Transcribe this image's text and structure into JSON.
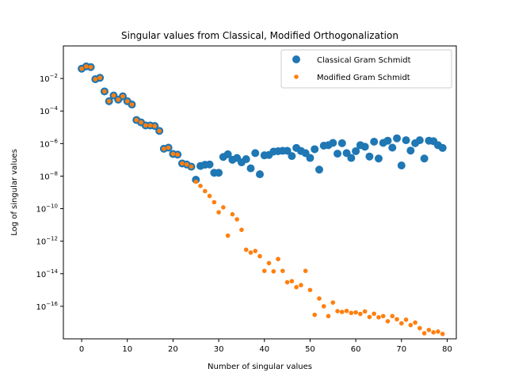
{
  "chart_data": {
    "type": "scatter",
    "title": "Singular values from Classical, Modified Orthogonalization",
    "xlabel": "Number of singular values",
    "ylabel": "Log of singular values",
    "xlim": [
      -4,
      82
    ],
    "ylim": [
      1e-18,
      1.0
    ],
    "y_scale": "log",
    "x_ticks": [
      0,
      10,
      20,
      30,
      40,
      50,
      60,
      70,
      80
    ],
    "y_ticks": [
      {
        "value": 1e-16,
        "base": "10",
        "exp": "−16"
      },
      {
        "value": 1e-14,
        "base": "10",
        "exp": "−14"
      },
      {
        "value": 1e-12,
        "base": "10",
        "exp": "−12"
      },
      {
        "value": 1e-10,
        "base": "10",
        "exp": "−10"
      },
      {
        "value": 1e-08,
        "base": "10",
        "exp": "−8"
      },
      {
        "value": 1e-06,
        "base": "10",
        "exp": "−6"
      },
      {
        "value": 0.0001,
        "base": "10",
        "exp": "−4"
      },
      {
        "value": 0.01,
        "base": "10",
        "exp": "−2"
      }
    ],
    "legend_position": "top-right",
    "series": [
      {
        "name": "Classical Gram Schmidt",
        "color": "#1f77b4",
        "marker": "large-circle",
        "x": [
          0,
          1,
          2,
          3,
          4,
          5,
          6,
          7,
          8,
          9,
          10,
          11,
          12,
          13,
          14,
          15,
          16,
          17,
          18,
          19,
          20,
          21,
          22,
          23,
          24,
          25,
          26,
          27,
          28,
          29,
          30,
          31,
          32,
          33,
          34,
          35,
          36,
          37,
          38,
          39,
          40,
          41,
          42,
          43,
          44,
          45,
          46,
          47,
          48,
          49,
          50,
          51,
          52,
          53,
          54,
          55,
          56,
          57,
          58,
          59,
          60,
          61,
          62,
          63,
          64,
          65,
          66,
          67,
          68,
          69,
          70,
          71,
          72,
          73,
          74,
          75,
          76,
          77,
          78,
          79
        ],
        "y": [
          0.04,
          0.055,
          0.05,
          0.009,
          0.011,
          0.0016,
          0.0004,
          0.0009,
          0.0005,
          0.0008,
          0.0004,
          0.00025,
          2.8e-05,
          2e-05,
          1.3e-05,
          1.3e-05,
          1.2e-05,
          6e-06,
          4.8e-07,
          5.6e-07,
          2.3e-07,
          2.1e-07,
          6e-08,
          5.2e-08,
          3.8e-08,
          6e-09,
          4.2e-08,
          5e-08,
          5.2e-08,
          1.6e-08,
          1.6e-08,
          1.5e-07,
          2.2e-07,
          1e-07,
          1.3e-07,
          7e-08,
          1.1e-07,
          3e-08,
          2.6e-07,
          1.3e-08,
          1.9e-07,
          2e-07,
          3.2e-07,
          3.4e-07,
          3.6e-07,
          3.6e-07,
          1.7e-07,
          5.4e-07,
          3.5e-07,
          2.6e-07,
          1.3e-07,
          4.5e-07,
          2.5e-08,
          7.4e-07,
          8e-07,
          1.1e-06,
          2.4e-07,
          1.05e-06,
          2.6e-07,
          1.3e-07,
          3.4e-07,
          8e-07,
          6.4e-07,
          1.6e-07,
          1.3e-06,
          1.2e-07,
          1.1e-06,
          1.5e-06,
          5.6e-07,
          2.1e-06,
          4.5e-08,
          1.6e-06,
          3.7e-07,
          1.05e-06,
          1.6e-06,
          1.2e-07,
          1.5e-06,
          1.4e-06,
          8e-07,
          5.4e-07
        ]
      },
      {
        "name": "Modified Gram Schmidt",
        "color": "#ff7f0e",
        "marker": "small-circle",
        "x": [
          0,
          1,
          2,
          3,
          4,
          5,
          6,
          7,
          8,
          9,
          10,
          11,
          12,
          13,
          14,
          15,
          16,
          17,
          18,
          19,
          20,
          21,
          22,
          23,
          24,
          25,
          26,
          27,
          28,
          29,
          30,
          31,
          32,
          33,
          34,
          35,
          36,
          37,
          38,
          39,
          40,
          41,
          42,
          43,
          44,
          45,
          46,
          47,
          48,
          49,
          50,
          51,
          52,
          53,
          54,
          55,
          56,
          57,
          58,
          59,
          60,
          61,
          62,
          63,
          64,
          65,
          66,
          67,
          68,
          69,
          70,
          71,
          72,
          73,
          74,
          75,
          76,
          77,
          78,
          79
        ],
        "y": [
          0.04,
          0.055,
          0.05,
          0.009,
          0.011,
          0.0016,
          0.0004,
          0.0009,
          0.0005,
          0.0008,
          0.0004,
          0.00025,
          2.8e-05,
          2e-05,
          1.3e-05,
          1.3e-05,
          1.2e-05,
          6e-06,
          4.8e-07,
          5.6e-07,
          2.3e-07,
          2.1e-07,
          6e-08,
          5.2e-08,
          3.8e-08,
          4.5e-09,
          2.5e-09,
          1.2e-09,
          6e-10,
          2.5e-10,
          6e-11,
          1.2e-10,
          2.2e-12,
          4.5e-11,
          2.2e-11,
          5e-12,
          3e-13,
          2e-13,
          2.5e-13,
          1.2e-13,
          1.5e-14,
          4.5e-14,
          1.4e-14,
          8e-14,
          1.5e-14,
          3e-15,
          3.5e-15,
          1.5e-15,
          2e-15,
          1.5e-14,
          1e-15,
          3e-17,
          3e-16,
          1e-16,
          2.5e-17,
          1.7e-16,
          5e-17,
          4.5e-17,
          5.2e-17,
          3.9e-17,
          4.2e-17,
          3.4e-17,
          4.8e-17,
          2.2e-17,
          3.5e-17,
          2.1e-17,
          2.5e-17,
          1.2e-17,
          2.5e-17,
          1.6e-17,
          9e-18,
          1.5e-17,
          7e-18,
          1e-17,
          4.5e-18,
          2.2e-18,
          3.5e-18,
          2.5e-18,
          2.8e-18,
          2e-18
        ]
      }
    ]
  }
}
